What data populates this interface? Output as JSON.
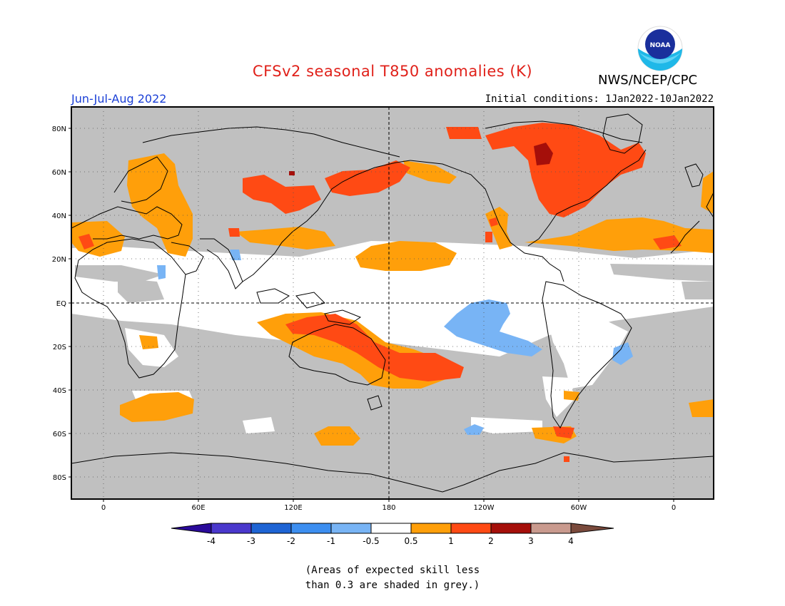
{
  "header": {
    "title": "CFSv2 seasonal T850 anomalies (K)",
    "agency": "NWS/NCEP/CPC",
    "season": "Jun-Jul-Aug 2022",
    "initial_conditions": "Initial conditions: 1Jan2022-10Jan2022",
    "logo_text": "NOAA"
  },
  "map": {
    "lat_labels": [
      "80N",
      "60N",
      "40N",
      "20N",
      "EQ",
      "20S",
      "40S",
      "60S",
      "80S"
    ],
    "lon_labels": [
      "0",
      "60E",
      "120E",
      "180",
      "120W",
      "60W",
      "0"
    ],
    "grey_meaning": "skill < 0.3"
  },
  "colorbar": {
    "labels": [
      "-4",
      "-3",
      "-2",
      "-1",
      "-0.5",
      "0.5",
      "1",
      "2",
      "3",
      "4"
    ],
    "colors": [
      "#2a0a9a",
      "#4a38cc",
      "#1e64d4",
      "#3c8ef0",
      "#78b4f5",
      "#ffffff",
      "#ff9f0a",
      "#ff4a14",
      "#a50f0a",
      "#c99a8e",
      "#7a4a3c"
    ]
  },
  "footnote": {
    "line1": "(Areas of expected skill less",
    "line2": "than 0.3 are shaded in grey.)"
  }
}
